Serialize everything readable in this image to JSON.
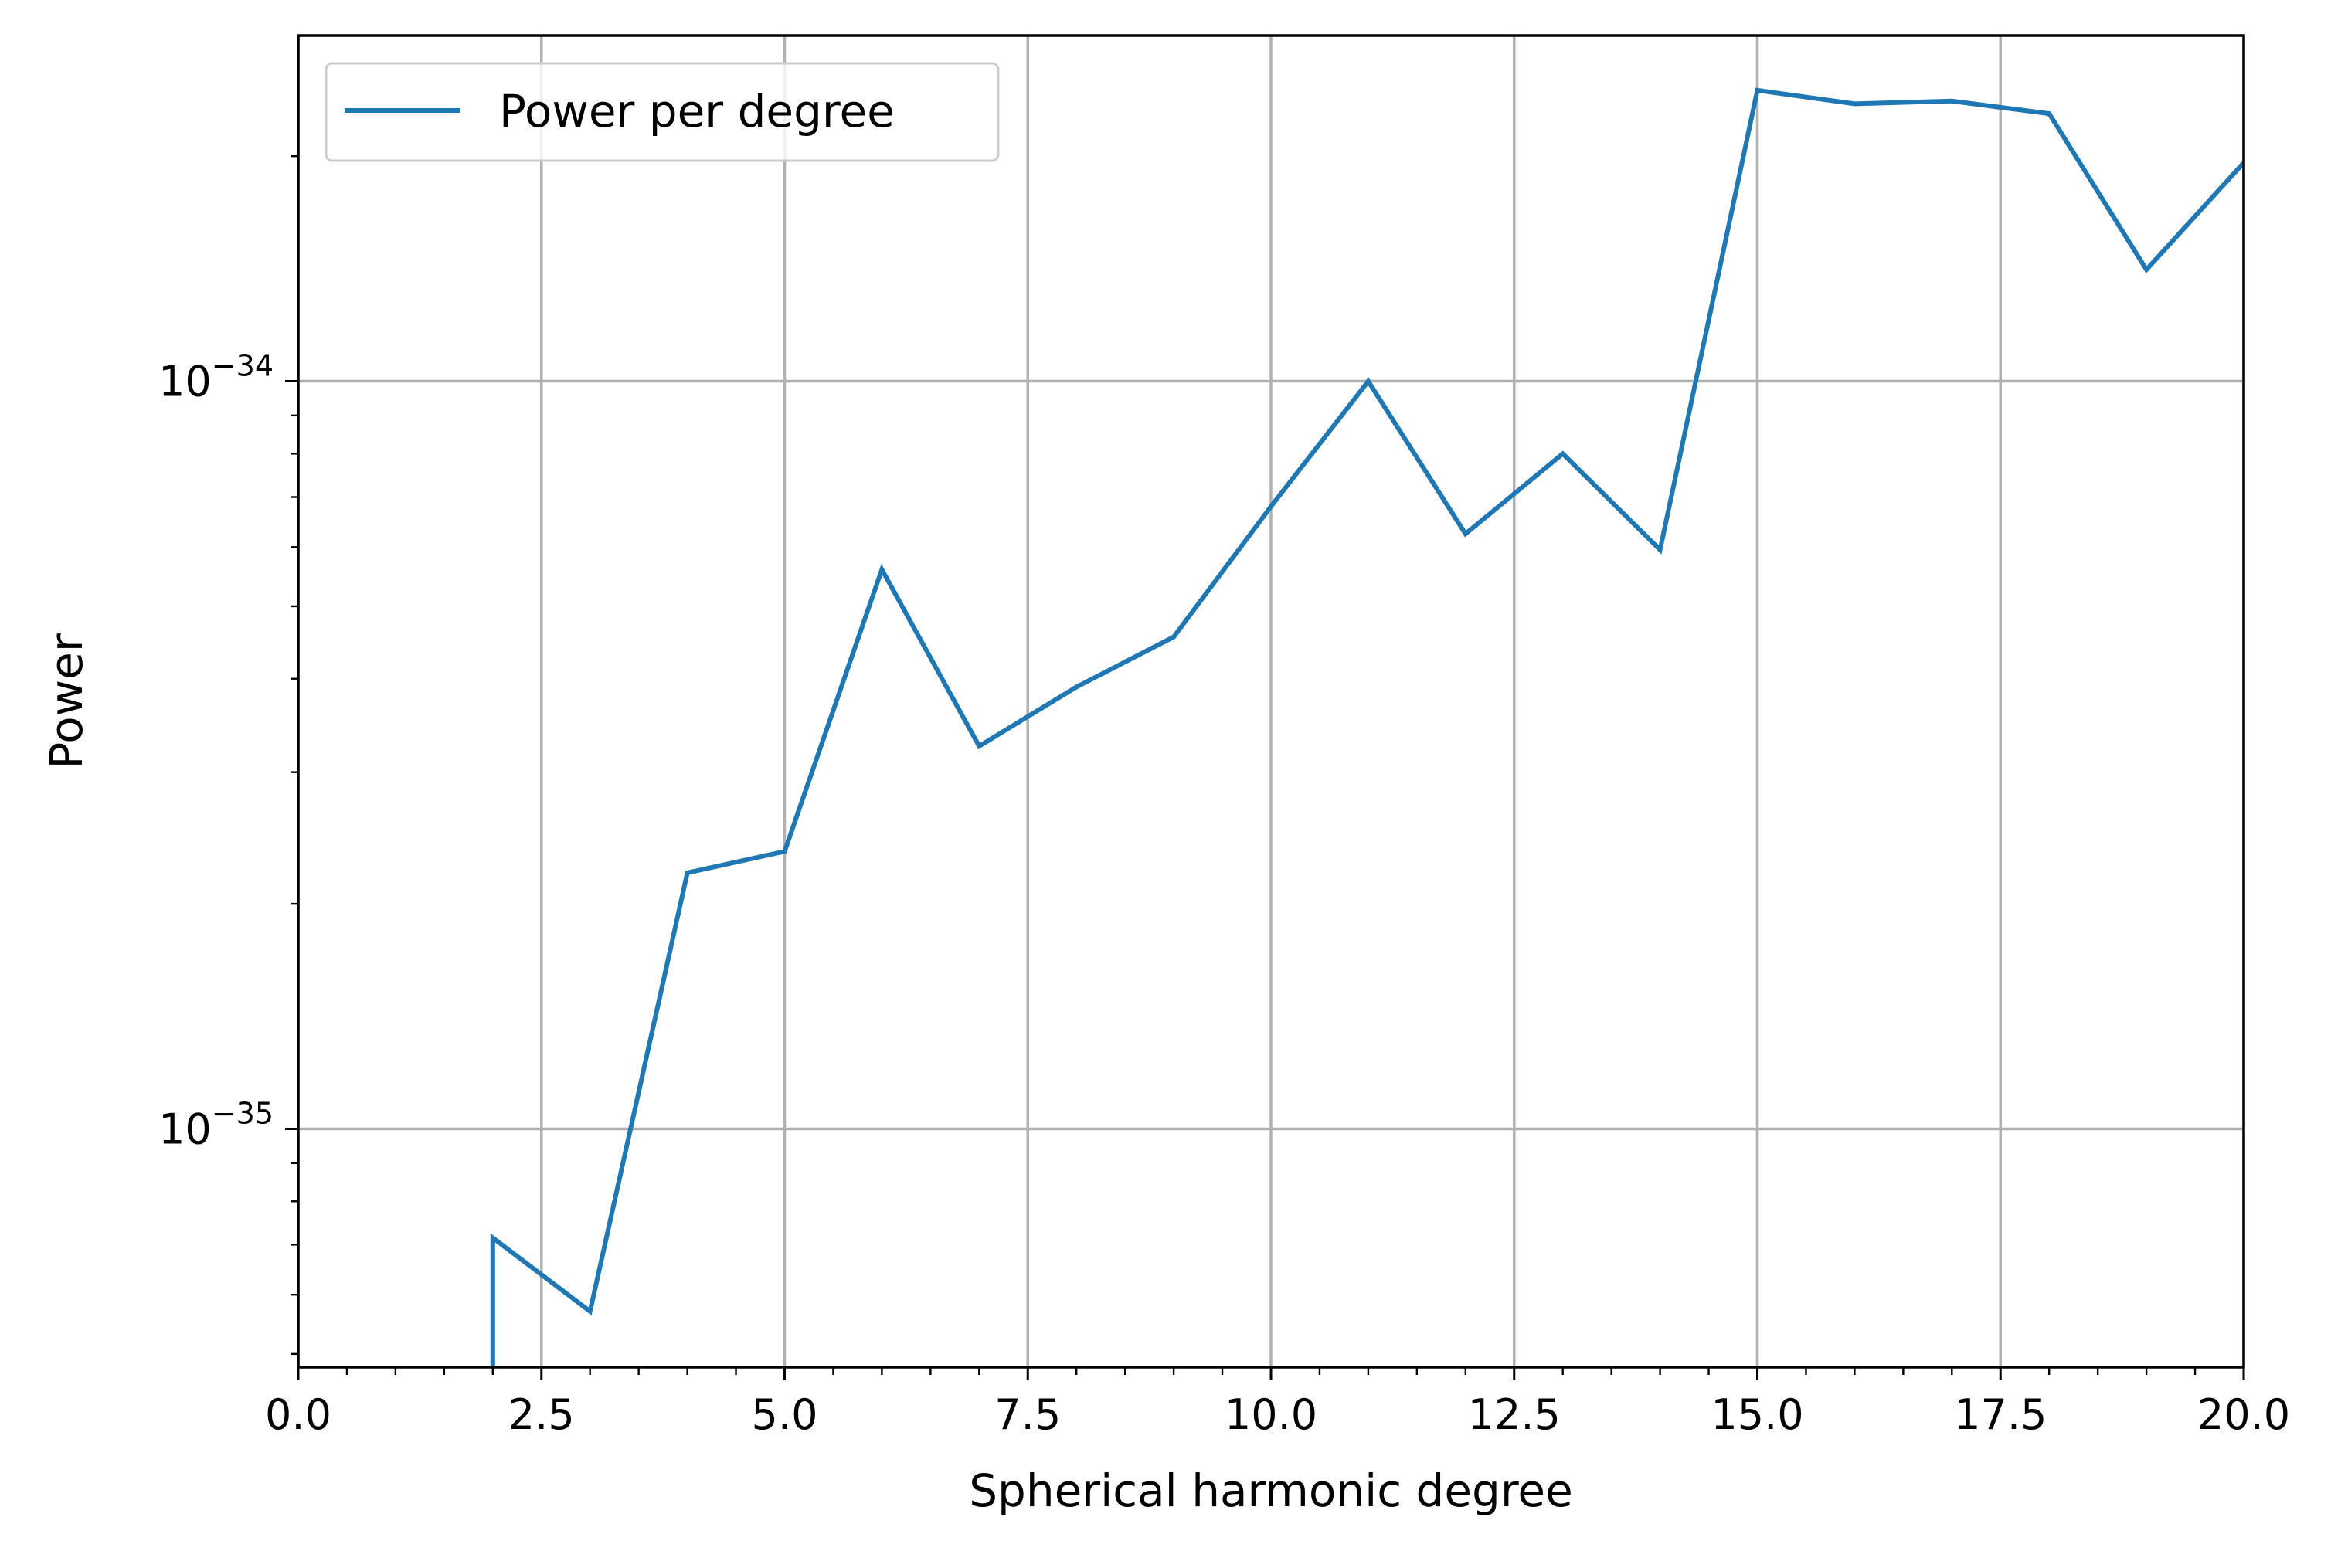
{
  "chart_data": {
    "type": "line",
    "title": "",
    "xlabel": "Spherical harmonic degree",
    "ylabel": "Power",
    "xscale": "linear",
    "yscale": "log",
    "xlim": [
      0,
      20
    ],
    "ylim": [
      4.8e-36,
      2.9e-34
    ],
    "grid": true,
    "legend_position": "upper-left",
    "x_ticks": [
      0,
      2.5,
      5,
      7.5,
      10,
      12.5,
      15,
      17.5,
      20
    ],
    "x_tick_labels": [
      "0.0",
      "2.5",
      "5.0",
      "7.5",
      "10.0",
      "12.5",
      "15.0",
      "17.5",
      "20.0"
    ],
    "y_ticks": [
      1e-35,
      1e-34
    ],
    "y_tick_labels": [
      {
        "base": "10",
        "exponent": "−35"
      },
      {
        "base": "10",
        "exponent": "−34"
      }
    ],
    "series": [
      {
        "name": "Power per degree",
        "color": "#1f77b4",
        "x": [
          2,
          2,
          3,
          4,
          5,
          6,
          7,
          8,
          9,
          10,
          11,
          12,
          13,
          14,
          15,
          16,
          17,
          18,
          19,
          20
        ],
        "y": [
          4.8e-36,
          7.15e-36,
          5.7e-36,
          2.2e-35,
          2.35e-35,
          5.6e-35,
          3.25e-35,
          3.9e-35,
          4.55e-35,
          6.8e-35,
          1e-34,
          6.25e-35,
          8e-35,
          5.95e-35,
          2.45e-34,
          2.35e-34,
          2.37e-34,
          2.28e-34,
          1.41e-34,
          1.96e-34
        ]
      }
    ]
  }
}
